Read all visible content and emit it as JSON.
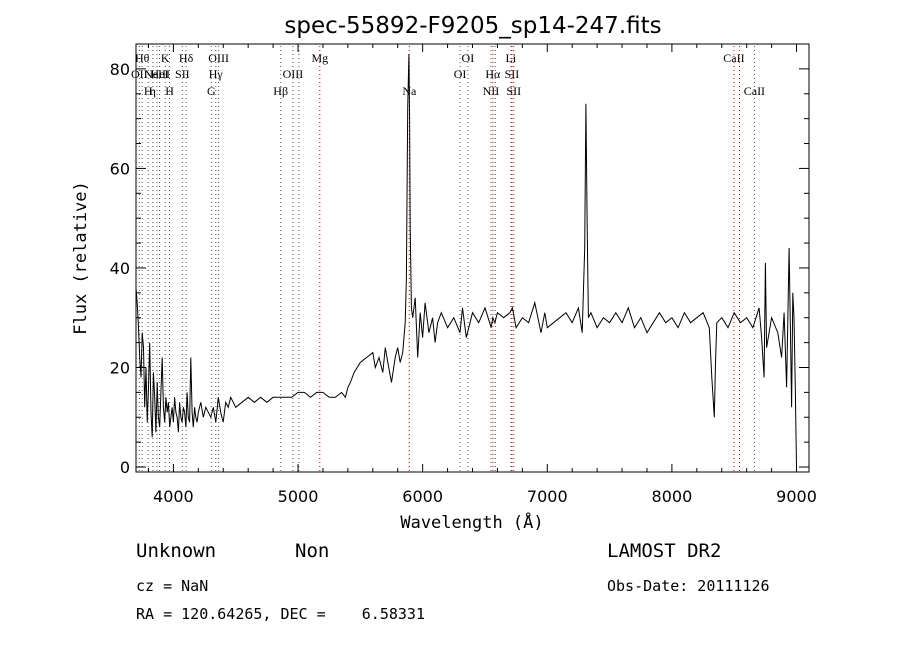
{
  "chart_data": {
    "type": "line",
    "title": "spec-55892-F9205_sp14-247.fits",
    "xlabel": "Wavelength (Å)",
    "ylabel": "Flux (relative)",
    "xlim": [
      3700,
      9100
    ],
    "ylim": [
      -1,
      85
    ],
    "xticks": [
      4000,
      5000,
      6000,
      7000,
      8000,
      9000
    ],
    "yticks": [
      0,
      20,
      40,
      60,
      80
    ],
    "grid": false,
    "series": [
      {
        "x": [
          3700,
          3710,
          3720,
          3730,
          3740,
          3750,
          3760,
          3770,
          3780,
          3790,
          3800,
          3810,
          3820,
          3830,
          3840,
          3850,
          3860,
          3870,
          3880,
          3890,
          3900,
          3910,
          3920,
          3930,
          3940,
          3950,
          3960,
          3970,
          3980,
          3990,
          4000,
          4010,
          4020,
          4030,
          4040,
          4050,
          4060,
          4070,
          4080,
          4090,
          4100,
          4110,
          4120,
          4130,
          4140,
          4150,
          4160,
          4170,
          4180,
          4190,
          4200,
          4220,
          4240,
          4260,
          4280,
          4300,
          4320,
          4340,
          4360,
          4380,
          4400,
          4420,
          4440,
          4460,
          4480,
          4500,
          4550,
          4600,
          4650,
          4700,
          4750,
          4800,
          4850,
          4900,
          4950,
          5000,
          5050,
          5100,
          5150,
          5200,
          5250,
          5300,
          5350,
          5380,
          5400,
          5420,
          5450,
          5500,
          5550,
          5600,
          5620,
          5650,
          5680,
          5700,
          5720,
          5750,
          5780,
          5800,
          5820,
          5840,
          5860,
          5870,
          5880,
          5890,
          5895,
          5900,
          5910,
          5920,
          5940,
          5960,
          5980,
          6000,
          6020,
          6050,
          6080,
          6100,
          6120,
          6150,
          6200,
          6250,
          6300,
          6320,
          6350,
          6400,
          6450,
          6500,
          6550,
          6563,
          6580,
          6600,
          6650,
          6700,
          6720,
          6750,
          6800,
          6850,
          6900,
          6950,
          6980,
          7000,
          7050,
          7100,
          7150,
          7200,
          7250,
          7280,
          7300,
          7310,
          7320,
          7330,
          7350,
          7400,
          7450,
          7500,
          7550,
          7600,
          7650,
          7700,
          7750,
          7800,
          7850,
          7900,
          7950,
          8000,
          8050,
          8100,
          8150,
          8200,
          8250,
          8300,
          8320,
          8340,
          8350,
          8360,
          8400,
          8450,
          8500,
          8550,
          8600,
          8650,
          8700,
          8720,
          8740,
          8750,
          8760,
          8800,
          8850,
          8880,
          8900,
          8920,
          8940,
          8950,
          8960,
          8970,
          8980,
          8990,
          9000
        ],
        "y": [
          36,
          33,
          28,
          22,
          18,
          27,
          24,
          12,
          20,
          9,
          16,
          25,
          11,
          6,
          19,
          14,
          7,
          17,
          10,
          8,
          15,
          22,
          12,
          9,
          14,
          11,
          13,
          8,
          10,
          12,
          9,
          14,
          11,
          10,
          7,
          13,
          10,
          9,
          12,
          11,
          8,
          15,
          10,
          9,
          22,
          11,
          8,
          12,
          10,
          9,
          11,
          13,
          10,
          12,
          11,
          10,
          12,
          9,
          14,
          11,
          9,
          13,
          12,
          14,
          13,
          12,
          13,
          14,
          13,
          14,
          13,
          14,
          14,
          14,
          14,
          15,
          15,
          14,
          15,
          15,
          14,
          14,
          15,
          14,
          16,
          17,
          19,
          21,
          22,
          23,
          20,
          22,
          19,
          24,
          21,
          17,
          22,
          24,
          21,
          23,
          29,
          38,
          72,
          83,
          70,
          48,
          32,
          30,
          34,
          22,
          31,
          26,
          33,
          27,
          30,
          25,
          29,
          31,
          28,
          30,
          27,
          32,
          26,
          31,
          29,
          32,
          28,
          30,
          29,
          31,
          30,
          31,
          32,
          28,
          30,
          29,
          33,
          27,
          31,
          28,
          29,
          30,
          31,
          29,
          32,
          27,
          44,
          73,
          48,
          30,
          31,
          28,
          30,
          29,
          31,
          29,
          32,
          28,
          30,
          27,
          29,
          31,
          29,
          30,
          28,
          31,
          29,
          30,
          31,
          28,
          18,
          10,
          21,
          29,
          30,
          28,
          31,
          29,
          30,
          28,
          32,
          26,
          18,
          41,
          24,
          30,
          27,
          22,
          31,
          16,
          44,
          29,
          12,
          35,
          30,
          16,
          0
        ]
      }
    ],
    "line_markers": [
      {
        "wave": 3727,
        "label": "OII",
        "row": 2,
        "color": "#555555"
      },
      {
        "wave": 3750,
        "label": "Hθ",
        "row": 1,
        "color": "#555555"
      },
      {
        "wave": 3798,
        "label": "H",
        "row": 3,
        "color": "#555555"
      },
      {
        "wave": 3835,
        "label": "η",
        "row": 3,
        "color": "#555555"
      },
      {
        "wave": 3869,
        "label": "NeIII",
        "row": 2,
        "color": "#555555"
      },
      {
        "wave": 3889,
        "label": "HeI",
        "row": 2,
        "color": "#555555"
      },
      {
        "wave": 3934,
        "label": "K",
        "row": 1,
        "color": "#555555"
      },
      {
        "wave": 3969,
        "label": "H",
        "row": 3,
        "color": "#555555"
      },
      {
        "wave": 4072,
        "label": "SII",
        "row": 2,
        "color": "#555555"
      },
      {
        "wave": 4102,
        "label": "Hδ",
        "row": 1,
        "color": "#555555"
      },
      {
        "wave": 4304,
        "label": "G",
        "row": 3,
        "color": "#555555"
      },
      {
        "wave": 4340,
        "label": "Hγ",
        "row": 2,
        "color": "#555555"
      },
      {
        "wave": 4363,
        "label": "OIII",
        "row": 1,
        "color": "#555555"
      },
      {
        "wave": 4861,
        "label": "Hβ",
        "row": 3,
        "color": "#555555"
      },
      {
        "wave": 4959,
        "label": "OIII",
        "row": 2,
        "color": "#555555"
      },
      {
        "wave": 5007,
        "label": "",
        "row": 2,
        "color": "#555555"
      },
      {
        "wave": 5175,
        "label": "Mg",
        "row": 1,
        "color": "#cc0000"
      },
      {
        "wave": 5893,
        "label": "Na",
        "row": 3,
        "color": "#cc0000"
      },
      {
        "wave": 6300,
        "label": "OI",
        "row": 2,
        "color": "#555555"
      },
      {
        "wave": 6363,
        "label": "OI",
        "row": 1,
        "color": "#555555"
      },
      {
        "wave": 6548,
        "label": "NII",
        "row": 3,
        "color": "#555555"
      },
      {
        "wave": 6563,
        "label": "Hα",
        "row": 2,
        "color": "#cc0000"
      },
      {
        "wave": 6583,
        "label": "",
        "row": 3,
        "color": "#555555"
      },
      {
        "wave": 6708,
        "label": "Li",
        "row": 1,
        "color": "#555555"
      },
      {
        "wave": 6716,
        "label": "SII",
        "row": 2,
        "color": "#cc0000"
      },
      {
        "wave": 6731,
        "label": "SII",
        "row": 3,
        "color": "#cc0000"
      },
      {
        "wave": 8498,
        "label": "CaII",
        "row": 1,
        "color": "#cc0000"
      },
      {
        "wave": 8542,
        "label": "",
        "row": 1,
        "color": "#cc0000"
      },
      {
        "wave": 8662,
        "label": "CaII",
        "row": 3,
        "color": "#555555"
      }
    ]
  },
  "info": {
    "class": "Unknown",
    "subclass": "Non",
    "survey": "LAMOST DR2",
    "cz": "cz = NaN",
    "obs_date": "Obs-Date: 20111126",
    "radec": "RA = 120.64265, DEC =    6.58331"
  }
}
